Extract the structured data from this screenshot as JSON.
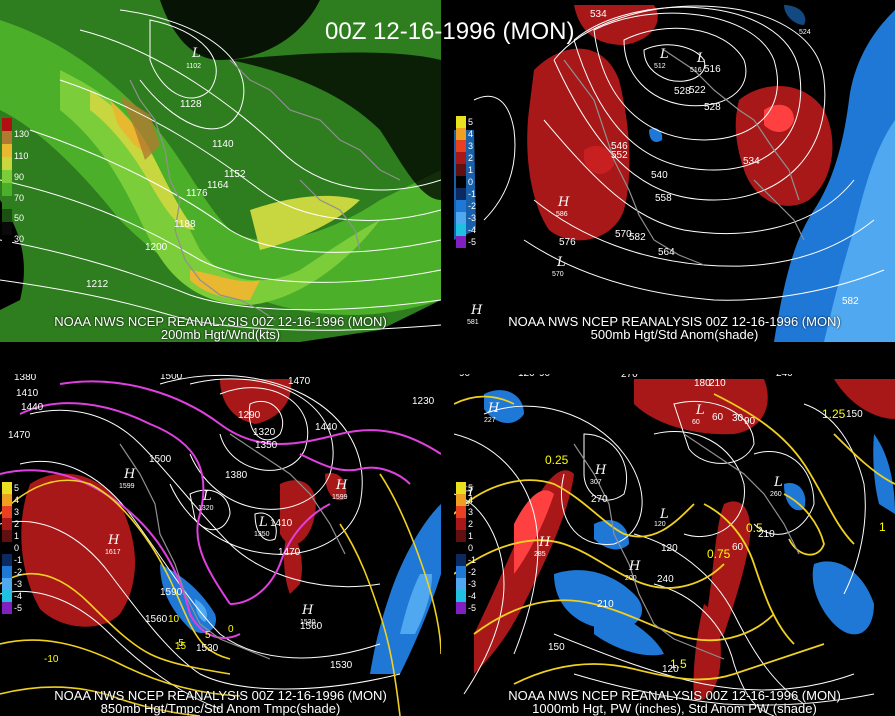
{
  "title": "00Z 12-16-1996 (MON)",
  "panels": {
    "tl": {
      "line1": "NOAA NWS NCEP REANALYSIS 00Z 12-16-1996 (MON)",
      "line2": "200mb Hgt/Wnd(kts)",
      "legend": [
        "130",
        "110",
        "90",
        "70",
        "50",
        "30"
      ],
      "contours": [
        "1128",
        "1140",
        "1152",
        "1164",
        "1176",
        "1188",
        "1200",
        "1212"
      ],
      "lows": [
        "1102"
      ],
      "colors": {
        "bg": "#000000",
        "c1": "#2e7d1e",
        "c2": "#4caf2a",
        "c3": "#7ccd3a",
        "c4": "#c8d640",
        "c5": "#e8b830",
        "c6": "#b07a30"
      }
    },
    "tr": {
      "line1": "NOAA NWS NCEP REANALYSIS 00Z 12-16-1996 (MON)",
      "line2": "500mb Hgt/Std Anom(shade)",
      "legend": [
        "5",
        "4",
        "3",
        "2",
        "1",
        "0",
        "-1",
        "-2",
        "-3",
        "-4",
        "-5"
      ],
      "contours": [
        "534",
        "528",
        "522",
        "528",
        "534",
        "540",
        "546",
        "552",
        "558",
        "564",
        "570",
        "576",
        "582",
        "582",
        "516"
      ],
      "highs": [
        "586",
        "581"
      ],
      "lows": [
        "512",
        "516",
        "570",
        "524"
      ],
      "colors": {
        "warm": "#a81818",
        "cool": "#1f78d6",
        "bright": "#ff4040"
      }
    },
    "bl": {
      "line1": "NOAA NWS NCEP REANALYSIS 00Z 12-16-1996 (MON)",
      "line2": "850mb Hgt/Tmpc/Std Anom Tmpc(shade)",
      "legend": [
        "5",
        "4",
        "3",
        "2",
        "1",
        "0",
        "-1",
        "-2",
        "-3",
        "-4",
        "-5"
      ],
      "contours": [
        "1380",
        "1410",
        "1440",
        "1470",
        "1500",
        "1500",
        "1470",
        "1290",
        "1320",
        "1350",
        "1380",
        "1410",
        "1440",
        "1470",
        "1230",
        "1560",
        "1590",
        "1530",
        "1560",
        "1530"
      ],
      "temps": [
        "-10",
        "-5",
        "0",
        "5",
        "10",
        "15"
      ],
      "highs": [
        "1617",
        "1599",
        "1530",
        "1599"
      ],
      "lows": [
        "1320",
        "1350"
      ]
    },
    "br": {
      "line1": "NOAA NWS NCEP REANALYSIS 00Z 12-16-1996 (MON)",
      "line2": "1000mb Hgt, PW (inches), Std Anom PW (shade)",
      "legend": [
        "5",
        "4",
        "3",
        "2",
        "1",
        "0",
        "-1",
        "-2",
        "-3",
        "-4",
        "-5"
      ],
      "contours": [
        "90",
        "120",
        "90",
        "270",
        "180",
        "210",
        "240",
        "150",
        "60",
        "30",
        "120",
        "90",
        "210",
        "240",
        "270",
        "210",
        "150",
        "120",
        "60"
      ],
      "pw": [
        "0.25",
        "0.5",
        "0.75",
        "1",
        "1.25",
        "1.5"
      ],
      "highs": [
        "227",
        "307",
        "249",
        "285",
        "200"
      ],
      "lows": [
        "120",
        "60",
        "260"
      ]
    }
  }
}
